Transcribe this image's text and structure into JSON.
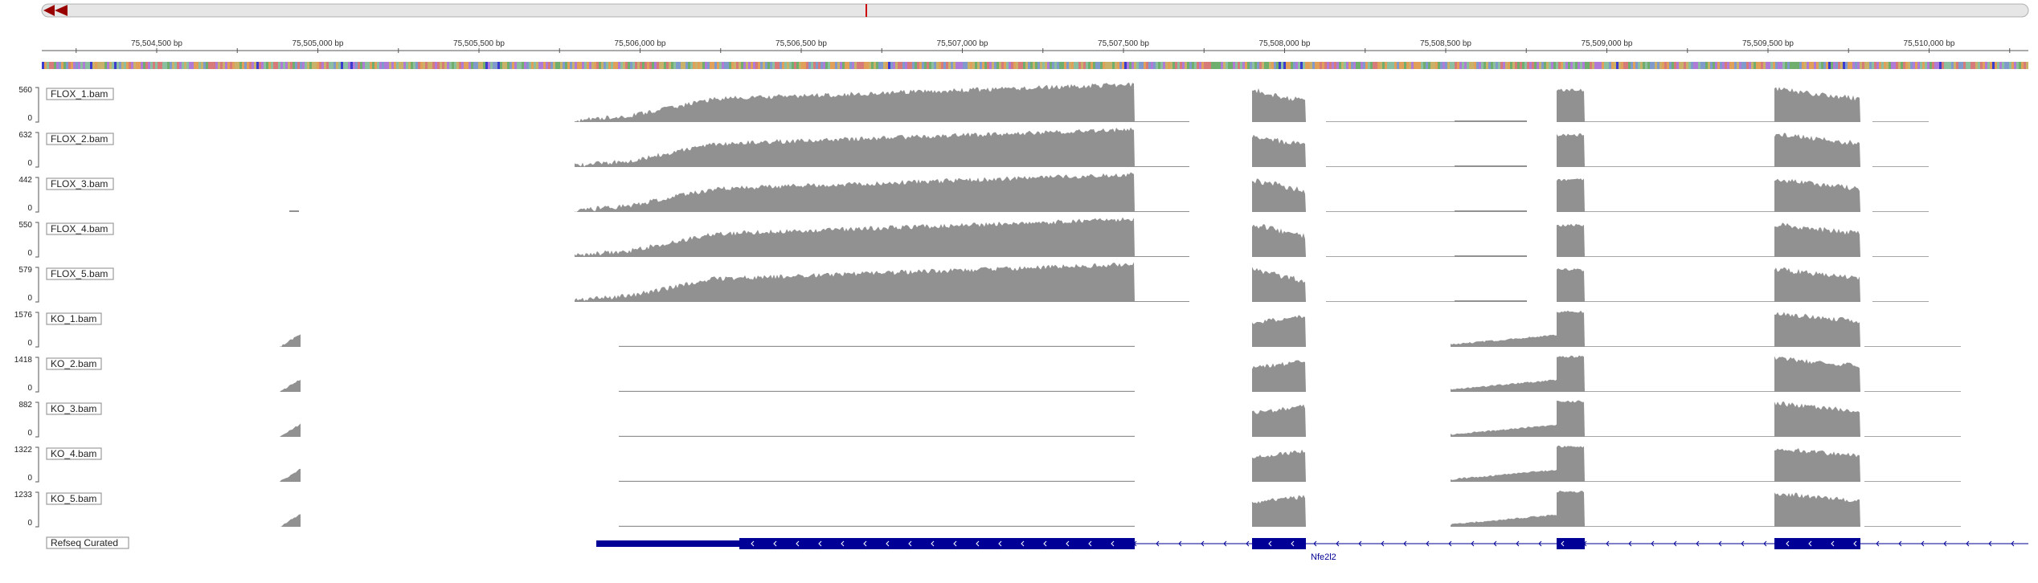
{
  "ruler": {
    "ticks": [
      "75,504,500 bp",
      "75,505,000 bp",
      "75,505,500 bp",
      "75,506,000 bp",
      "75,506,500 bp",
      "75,507,000 bp",
      "75,507,500 bp",
      "75,508,000 bp",
      "75,508,500 bp",
      "75,509,000 bp",
      "75,509,500 bp",
      "75,510,000 bp"
    ],
    "start_bp": 75504250,
    "end_bp": 75510300
  },
  "colors": {
    "coverage": "#919191",
    "gene": "#000096",
    "navigator_arrow": "#990000",
    "indicator": "#cc0000"
  },
  "tracks": [
    {
      "name": "FLOX_1.bam",
      "max": "560",
      "min": "0"
    },
    {
      "name": "FLOX_2.bam",
      "max": "632",
      "min": "0"
    },
    {
      "name": "FLOX_3.bam",
      "max": "442",
      "min": "0"
    },
    {
      "name": "FLOX_4.bam",
      "max": "550",
      "min": "0"
    },
    {
      "name": "FLOX_5.bam",
      "max": "579",
      "min": "0"
    },
    {
      "name": "KO_1.bam",
      "max": "1576",
      "min": "0"
    },
    {
      "name": "KO_2.bam",
      "max": "1418",
      "min": "0"
    },
    {
      "name": "KO_3.bam",
      "max": "882",
      "min": "0"
    },
    {
      "name": "KO_4.bam",
      "max": "1322",
      "min": "0"
    },
    {
      "name": "KO_5.bam",
      "max": "1233",
      "min": "0"
    }
  ],
  "gene_track": {
    "name": "Refseq Curated",
    "gene_label": "Nfe2l2"
  }
}
